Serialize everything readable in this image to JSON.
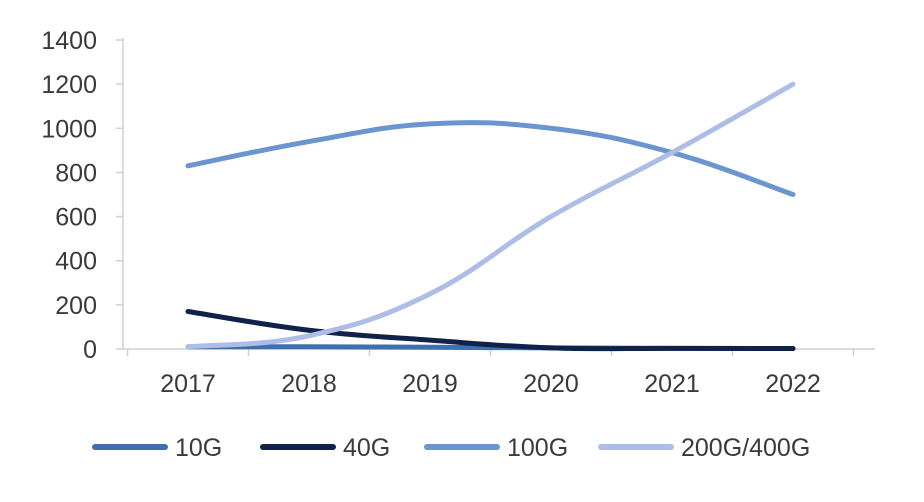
{
  "chart_data": {
    "type": "line",
    "title": "",
    "xlabel": "",
    "ylabel": "",
    "categories": [
      "2017",
      "2018",
      "2019",
      "2020",
      "2021",
      "2022"
    ],
    "ylim": [
      0,
      1400
    ],
    "yticks": [
      0,
      200,
      400,
      600,
      800,
      1000,
      1200,
      1400
    ],
    "grid": false,
    "legend": "bottom",
    "smooth": true,
    "series": [
      {
        "name": "10G",
        "color": "#3f6fae",
        "values": [
          10,
          10,
          8,
          5,
          3,
          2
        ]
      },
      {
        "name": "40G",
        "color": "#10224a",
        "values": [
          170,
          85,
          40,
          5,
          3,
          2
        ]
      },
      {
        "name": "100G",
        "color": "#6b95cf",
        "values": [
          830,
          940,
          1020,
          1000,
          890,
          700
        ]
      },
      {
        "name": "200G/400G",
        "color": "#aebde8",
        "values": [
          10,
          60,
          250,
          600,
          890,
          1200
        ]
      }
    ]
  }
}
